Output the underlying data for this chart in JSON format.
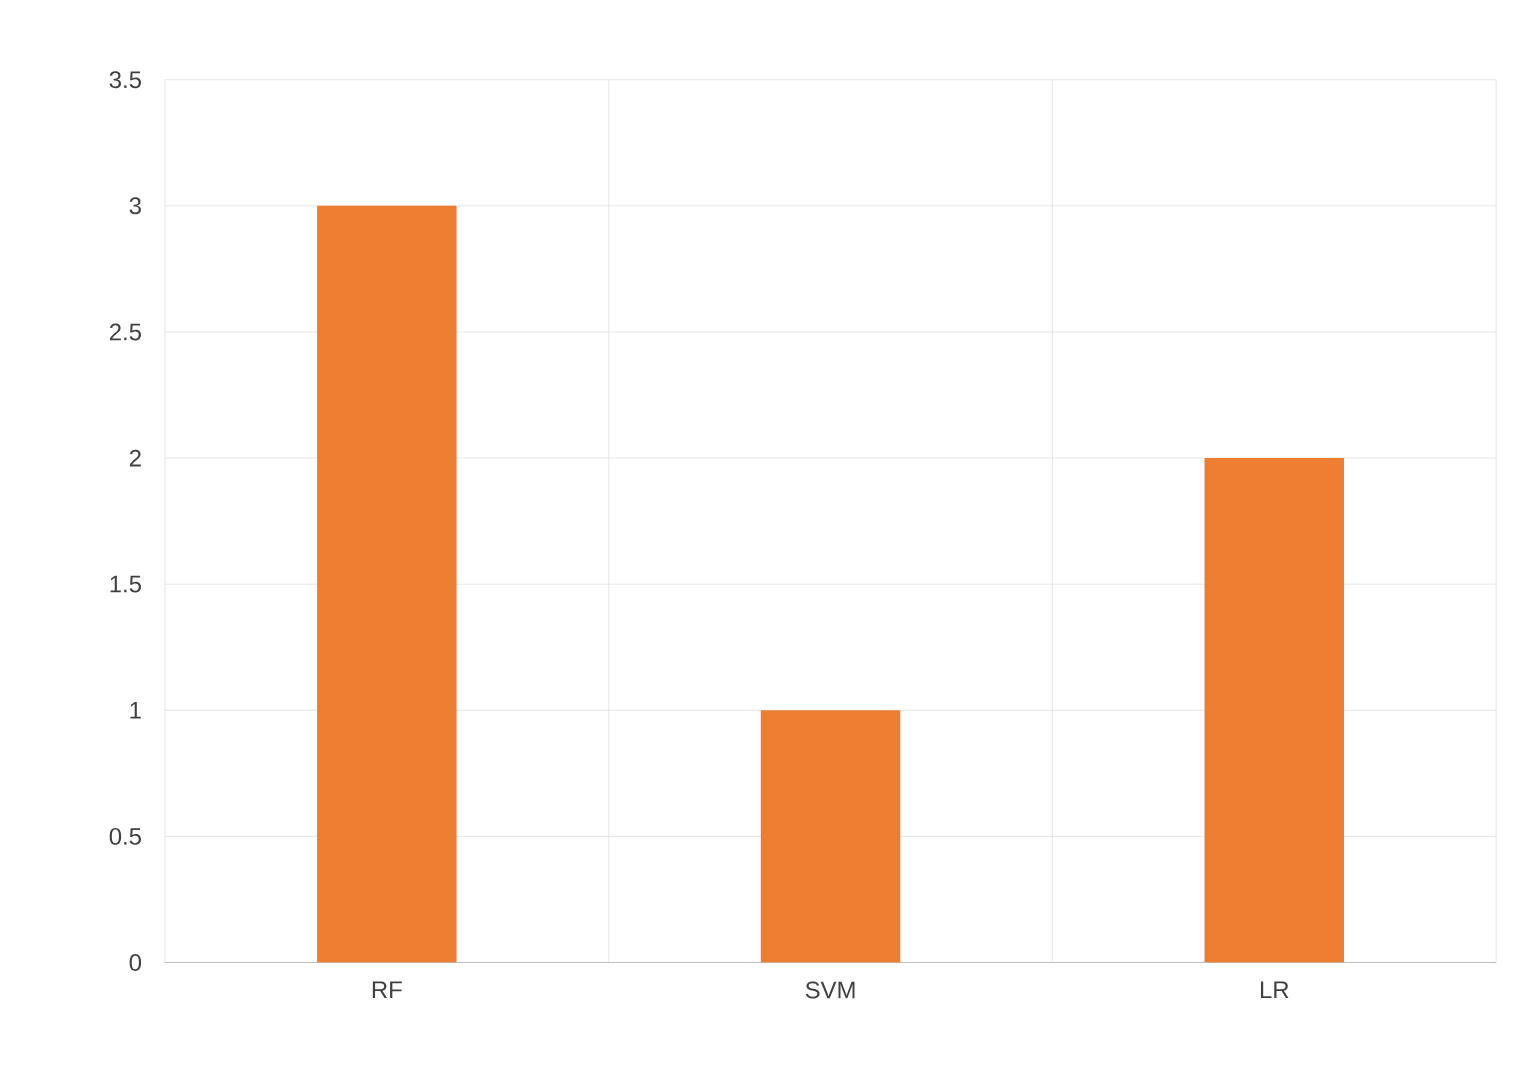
{
  "chart_data": {
    "type": "bar",
    "categories": [
      "RF",
      "SVM",
      "LR"
    ],
    "values": [
      3,
      1,
      2
    ],
    "color": "#ed7d31",
    "ylim": [
      0,
      3.5
    ],
    "yticks": [
      0,
      0.5,
      1,
      1.5,
      2,
      2.5,
      3,
      3.5
    ],
    "grid": true
  }
}
